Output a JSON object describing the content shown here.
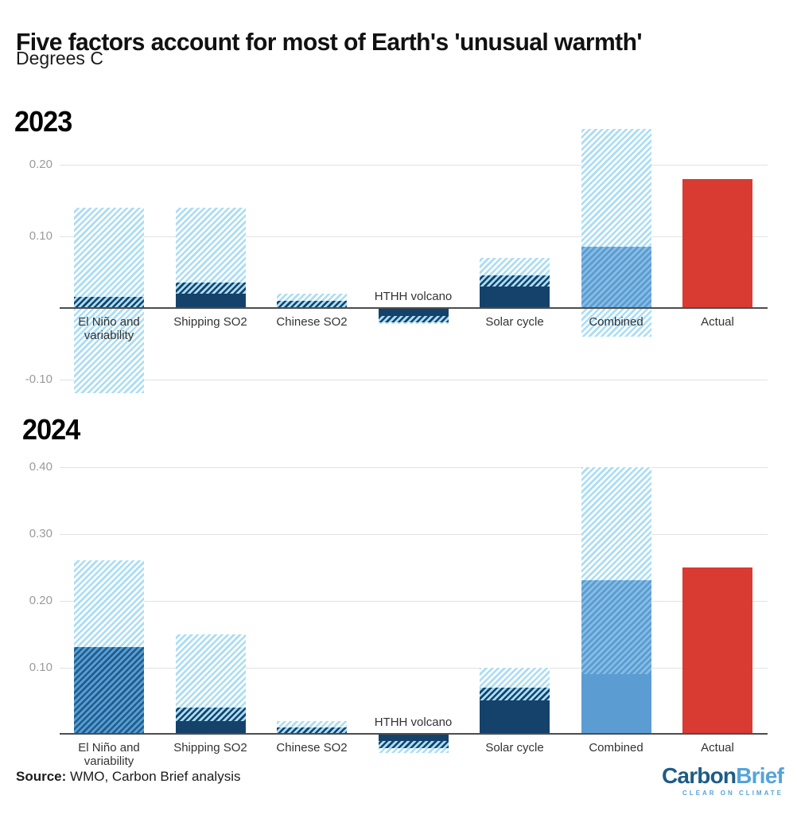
{
  "header": {
    "title": "Five factors account for most of Earth's 'unusual warmth'",
    "subtitle": "Degrees C"
  },
  "source": {
    "label": "Source:",
    "text": " WMO, Carbon Brief analysis"
  },
  "logo": {
    "part1": "Carbon",
    "part2": "Brief",
    "tagline": "CLEAR ON CLIMATE"
  },
  "colors": {
    "navy": "#15426a",
    "medium_blue": "#5b9cd3",
    "light_blue": "#a9ddf5",
    "medium_stripe_light": "#87bde3",
    "medium_stripe_dark": "#1d5e8c",
    "red": "#d93a32",
    "axis": "#4d4d4d",
    "gridline": "#e2e2e2",
    "tick_text": "#9b9b9b",
    "label_text": "#333333",
    "logo_dark": "#1d5c86",
    "logo_light": "#54a4da"
  },
  "chart_data": [
    {
      "type": "bar",
      "title": "2023",
      "ylabel": "Degrees C",
      "ylim": [
        -0.135,
        0.263
      ],
      "grid": true,
      "legend": "none",
      "yticks": [
        {
          "value": 0.2,
          "label": "0.20"
        },
        {
          "value": 0.1,
          "label": "0.10"
        },
        {
          "value": -0.1,
          "label": "-0.10"
        }
      ],
      "categories": [
        "El Niño and variability",
        "Shipping SO2",
        "Chinese SO2",
        "HTHH volcano",
        "Solar cycle",
        "Combined",
        "Actual"
      ],
      "bars": [
        {
          "category": "El Niño and variability",
          "label_lines": [
            "El Niño and",
            "variability"
          ],
          "label_position": "below",
          "central": 0.015,
          "range_low": -0.12,
          "range_high": 0.14,
          "segments": [
            {
              "style": "light-hatch",
              "from": -0.12,
              "to": 0.14
            },
            {
              "style": "dark-hatch",
              "from": 0,
              "to": 0.015
            }
          ]
        },
        {
          "category": "Shipping SO2",
          "label_lines": [
            "Shipping SO2"
          ],
          "label_position": "below",
          "central": 0.02,
          "range_low": 0,
          "range_high": 0.14,
          "segments": [
            {
              "style": "light-hatch",
              "from": 0,
              "to": 0.14
            },
            {
              "style": "dark-hatch",
              "from": 0,
              "to": 0.035
            },
            {
              "style": "solid-dark",
              "from": 0,
              "to": 0.02
            }
          ]
        },
        {
          "category": "Chinese SO2",
          "label_lines": [
            "Chinese SO2"
          ],
          "label_position": "below",
          "central": 0.01,
          "range_low": 0,
          "range_high": 0.02,
          "segments": [
            {
              "style": "light-hatch",
              "from": 0,
              "to": 0.02
            },
            {
              "style": "dark-hatch",
              "from": 0,
              "to": 0.01
            }
          ]
        },
        {
          "category": "HTHH volcano",
          "label_lines": [
            "HTHH volcano"
          ],
          "label_position": "above",
          "central": -0.012,
          "range_low": -0.023,
          "range_high": 0,
          "segments": [
            {
              "style": "light-hatch",
              "from": -0.023,
              "to": 0
            },
            {
              "style": "dark-hatch",
              "from": -0.02,
              "to": 0
            },
            {
              "style": "solid-dark",
              "from": -0.012,
              "to": 0
            }
          ]
        },
        {
          "category": "Solar cycle",
          "label_lines": [
            "Solar cycle"
          ],
          "label_position": "below",
          "central": 0.03,
          "range_low": 0,
          "range_high": 0.07,
          "segments": [
            {
              "style": "light-hatch",
              "from": 0,
              "to": 0.07
            },
            {
              "style": "dark-hatch",
              "from": 0,
              "to": 0.045
            },
            {
              "style": "solid-dark",
              "from": 0,
              "to": 0.03
            }
          ]
        },
        {
          "category": "Combined",
          "label_lines": [
            "Combined"
          ],
          "label_position": "below",
          "central": 0.085,
          "range_low": -0.04,
          "range_high": 0.25,
          "segments": [
            {
              "style": "light-hatch",
              "from": -0.04,
              "to": 0.25
            },
            {
              "style": "medium-light-hatch",
              "from": 0,
              "to": 0.085
            }
          ]
        },
        {
          "category": "Actual",
          "label_lines": [
            "Actual"
          ],
          "label_position": "below",
          "central": 0.18,
          "range_low": 0.18,
          "range_high": 0.18,
          "segments": [
            {
              "style": "solid-red",
              "from": 0,
              "to": 0.18
            }
          ]
        }
      ]
    },
    {
      "type": "bar",
      "title": "2024",
      "ylabel": "Degrees C",
      "ylim": [
        -0.04,
        0.426
      ],
      "grid": true,
      "legend": "none",
      "yticks": [
        {
          "value": 0.4,
          "label": "0.40"
        },
        {
          "value": 0.3,
          "label": "0.30"
        },
        {
          "value": 0.2,
          "label": "0.20"
        },
        {
          "value": 0.1,
          "label": "0.10"
        }
      ],
      "categories": [
        "El Niño and variability",
        "Shipping SO2",
        "Chinese SO2",
        "HTHH volcano",
        "Solar cycle",
        "Combined",
        "Actual"
      ],
      "bars": [
        {
          "category": "El Niño and variability",
          "label_lines": [
            "El Niño and",
            "variability"
          ],
          "label_position": "below",
          "central": 0.13,
          "range_low": 0,
          "range_high": 0.26,
          "segments": [
            {
              "style": "light-hatch",
              "from": 0,
              "to": 0.26
            },
            {
              "style": "medium-dark-hatch",
              "from": 0,
              "to": 0.13
            }
          ]
        },
        {
          "category": "Shipping SO2",
          "label_lines": [
            "Shipping SO2"
          ],
          "label_position": "below",
          "central": 0.02,
          "range_low": 0,
          "range_high": 0.15,
          "segments": [
            {
              "style": "light-hatch",
              "from": 0,
              "to": 0.15
            },
            {
              "style": "dark-hatch",
              "from": 0,
              "to": 0.04
            },
            {
              "style": "solid-dark",
              "from": 0,
              "to": 0.02
            }
          ]
        },
        {
          "category": "Chinese SO2",
          "label_lines": [
            "Chinese SO2"
          ],
          "label_position": "below",
          "central": 0.01,
          "range_low": 0,
          "range_high": 0.02,
          "segments": [
            {
              "style": "light-hatch",
              "from": 0,
              "to": 0.02
            },
            {
              "style": "dark-hatch",
              "from": 0,
              "to": 0.01
            }
          ]
        },
        {
          "category": "HTHH volcano",
          "label_lines": [
            "HTHH volcano"
          ],
          "label_position": "above",
          "central": -0.01,
          "range_low": -0.028,
          "range_high": 0,
          "segments": [
            {
              "style": "light-hatch",
              "from": -0.028,
              "to": 0
            },
            {
              "style": "dark-hatch",
              "from": -0.021,
              "to": 0
            },
            {
              "style": "solid-dark",
              "from": -0.01,
              "to": 0
            }
          ]
        },
        {
          "category": "Solar cycle",
          "label_lines": [
            "Solar cycle"
          ],
          "label_position": "below",
          "central": 0.05,
          "range_low": 0,
          "range_high": 0.1,
          "segments": [
            {
              "style": "light-hatch",
              "from": 0,
              "to": 0.1
            },
            {
              "style": "dark-hatch",
              "from": 0,
              "to": 0.07
            },
            {
              "style": "solid-dark",
              "from": 0,
              "to": 0.05
            }
          ]
        },
        {
          "category": "Combined",
          "label_lines": [
            "Combined"
          ],
          "label_position": "below",
          "central": 0.09,
          "range_low": 0,
          "range_high": 0.4,
          "segments": [
            {
              "style": "light-hatch",
              "from": 0,
              "to": 0.4
            },
            {
              "style": "medium-light-hatch",
              "from": 0,
              "to": 0.23
            },
            {
              "style": "solid-medium",
              "from": 0,
              "to": 0.09
            }
          ]
        },
        {
          "category": "Actual",
          "label_lines": [
            "Actual"
          ],
          "label_position": "below",
          "central": 0.25,
          "range_low": 0.25,
          "range_high": 0.25,
          "segments": [
            {
              "style": "solid-red",
              "from": 0,
              "to": 0.25
            }
          ]
        }
      ]
    }
  ]
}
